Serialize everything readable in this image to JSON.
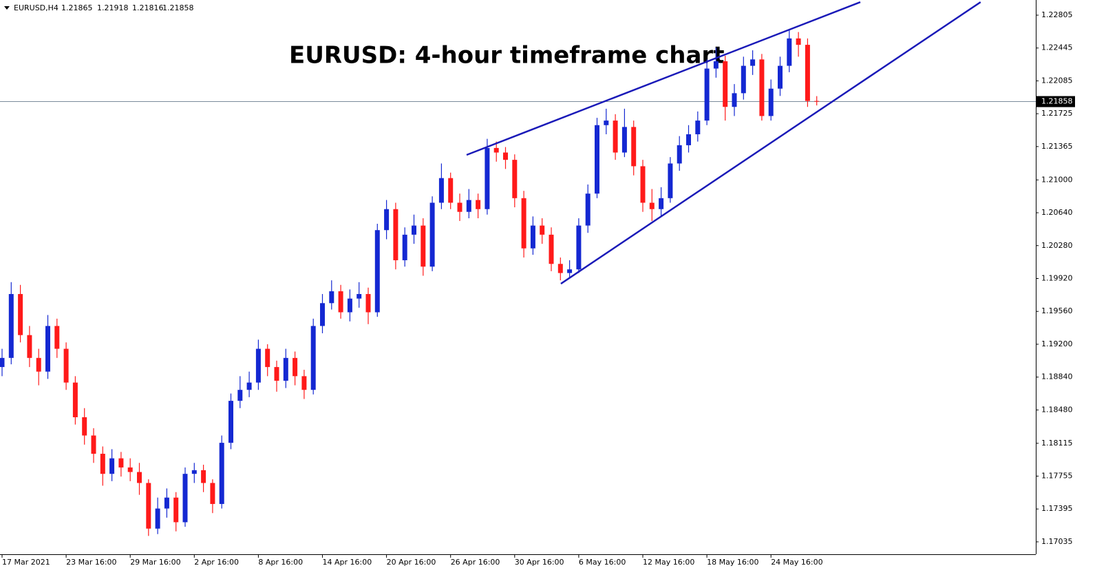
{
  "chart_data": {
    "type": "candlestick",
    "symbol": "EURUSD,H4",
    "title": "EURUSD: 4-hour timeframe chart",
    "categories": [
      "17 Mar 2021",
      null,
      null,
      null,
      null,
      null,
      null,
      "23 Mar 16:00",
      null,
      null,
      null,
      null,
      null,
      null,
      "29 Mar 16:00",
      null,
      null,
      null,
      null,
      null,
      null,
      "2 Apr 16:00",
      null,
      null,
      null,
      null,
      null,
      null,
      "8 Apr 16:00",
      null,
      null,
      null,
      null,
      null,
      null,
      "14 Apr 16:00",
      null,
      null,
      null,
      null,
      null,
      null,
      "20 Apr 16:00",
      null,
      null,
      null,
      null,
      null,
      null,
      "26 Apr 16:00",
      null,
      null,
      null,
      null,
      null,
      null,
      "30 Apr 16:00",
      null,
      null,
      null,
      null,
      null,
      null,
      "6 May 16:00",
      null,
      null,
      null,
      null,
      null,
      null,
      "12 May 16:00",
      null,
      null,
      null,
      null,
      null,
      null,
      "18 May 16:00",
      null,
      null,
      null,
      null,
      null,
      null,
      "24 May 16:00",
      null,
      null,
      null,
      null,
      null
    ],
    "open": [
      1.1895,
      1.1905,
      1.1975,
      1.193,
      1.1905,
      1.189,
      1.194,
      1.1915,
      1.1878,
      1.184,
      1.182,
      1.18,
      1.1778,
      1.1795,
      1.1785,
      1.178,
      1.1768,
      1.1718,
      1.174,
      1.1752,
      1.1725,
      1.1778,
      1.1782,
      1.1768,
      1.1745,
      1.1812,
      1.1858,
      1.187,
      1.1878,
      1.1915,
      1.1895,
      1.188,
      1.1905,
      1.1885,
      1.187,
      1.194,
      1.1965,
      1.1978,
      1.1955,
      1.197,
      1.1975,
      1.1955,
      1.2045,
      1.2068,
      1.2012,
      1.204,
      1.205,
      1.2005,
      1.2075,
      1.2102,
      1.2075,
      1.2065,
      1.2078,
      1.2068,
      1.2135,
      1.213,
      1.2122,
      1.208,
      1.2025,
      1.205,
      1.204,
      1.2008,
      1.1998,
      1.2002,
      1.205,
      1.2085,
      1.216,
      1.2165,
      1.213,
      1.2158,
      1.2115,
      1.2075,
      1.2068,
      1.208,
      1.2118,
      1.2138,
      1.215,
      1.2165,
      1.2222,
      1.223,
      1.218,
      1.2195,
      1.2225,
      1.2232,
      1.217,
      1.22,
      1.2225,
      1.2255,
      1.2248,
      1.21865
    ],
    "high": [
      1.1915,
      1.1988,
      1.1985,
      1.194,
      1.1915,
      1.1952,
      1.1948,
      1.1922,
      1.1885,
      1.185,
      1.1828,
      1.1808,
      1.1805,
      1.1802,
      1.1795,
      1.179,
      1.1772,
      1.1752,
      1.1762,
      1.1758,
      1.1785,
      1.179,
      1.1788,
      1.1772,
      1.182,
      1.1866,
      1.1885,
      1.189,
      1.1925,
      1.192,
      1.1902,
      1.1915,
      1.1912,
      1.1892,
      1.1948,
      1.1975,
      1.199,
      1.1985,
      1.198,
      1.1988,
      1.1982,
      1.2052,
      1.2078,
      1.2075,
      1.2048,
      1.2062,
      1.2058,
      1.2082,
      1.2118,
      1.2108,
      1.2085,
      1.209,
      1.2085,
      1.2145,
      1.2142,
      1.2136,
      1.2128,
      1.2088,
      1.206,
      1.2058,
      1.2048,
      1.2015,
      1.2012,
      1.2058,
      1.2095,
      1.2168,
      1.2178,
      1.2172,
      1.2178,
      1.2165,
      1.2122,
      1.209,
      1.2092,
      1.2125,
      1.2148,
      1.216,
      1.2175,
      1.2232,
      1.2245,
      1.2236,
      1.2205,
      1.2235,
      1.2242,
      1.2238,
      1.221,
      1.2235,
      1.2265,
      1.2262,
      1.2255,
      1.21918
    ],
    "low": [
      1.1885,
      1.1898,
      1.1922,
      1.1895,
      1.1875,
      1.1882,
      1.1905,
      1.187,
      1.1832,
      1.181,
      1.179,
      1.1765,
      1.177,
      1.1775,
      1.177,
      1.1755,
      1.171,
      1.1712,
      1.173,
      1.1715,
      1.172,
      1.1768,
      1.1758,
      1.1735,
      1.174,
      1.1805,
      1.185,
      1.1862,
      1.187,
      1.1885,
      1.1868,
      1.1872,
      1.1875,
      1.186,
      1.1865,
      1.1932,
      1.1958,
      1.1948,
      1.1945,
      1.196,
      1.1942,
      1.195,
      1.2035,
      1.2002,
      1.2005,
      1.203,
      1.1995,
      1.2,
      1.2068,
      1.2068,
      1.2055,
      1.2058,
      1.2058,
      1.2062,
      1.212,
      1.2112,
      1.207,
      1.2015,
      1.2018,
      1.203,
      1.2,
      1.199,
      1.1992,
      1.1998,
      1.2042,
      1.208,
      1.215,
      1.2122,
      1.2125,
      1.2105,
      1.2065,
      1.2055,
      1.206,
      1.2075,
      1.211,
      1.213,
      1.2142,
      1.216,
      1.2212,
      1.2165,
      1.217,
      1.2188,
      1.2215,
      1.2165,
      1.2165,
      1.2192,
      1.2218,
      1.2235,
      1.218,
      1.21816
    ],
    "close": [
      1.1905,
      1.1975,
      1.193,
      1.1905,
      1.189,
      1.194,
      1.1915,
      1.1878,
      1.184,
      1.182,
      1.18,
      1.1778,
      1.1795,
      1.1785,
      1.178,
      1.1768,
      1.1718,
      1.174,
      1.1752,
      1.1725,
      1.1778,
      1.1782,
      1.1768,
      1.1745,
      1.1812,
      1.1858,
      1.187,
      1.1878,
      1.1915,
      1.1895,
      1.188,
      1.1905,
      1.1885,
      1.187,
      1.194,
      1.1965,
      1.1978,
      1.1955,
      1.197,
      1.1975,
      1.1955,
      1.2045,
      1.2068,
      1.2012,
      1.204,
      1.205,
      1.2005,
      1.2075,
      1.2102,
      1.2075,
      1.2065,
      1.2078,
      1.2068,
      1.2135,
      1.213,
      1.2122,
      1.208,
      1.2025,
      1.205,
      1.204,
      1.2008,
      1.1998,
      1.2002,
      1.205,
      1.2085,
      1.216,
      1.2165,
      1.213,
      1.2158,
      1.2115,
      1.2075,
      1.2068,
      1.208,
      1.2118,
      1.2138,
      1.215,
      1.2165,
      1.2222,
      1.223,
      1.218,
      1.2195,
      1.2225,
      1.2232,
      1.217,
      1.22,
      1.2225,
      1.2255,
      1.2248,
      1.21865,
      1.21858
    ],
    "up_color": "#1428d2",
    "down_color": "#ff1a1a",
    "trendline_color": "#1a1ab8",
    "trendlines": [
      {
        "x": [
          50.75,
          93.76
        ],
        "y": [
          1.21274,
          1.22948
        ]
      },
      {
        "x": [
          61.05,
          106.9
        ],
        "y": [
          1.19863,
          1.22948
        ]
      }
    ],
    "ylim": [
      1.16899,
      1.22971
    ],
    "yticks": [
      1.22805,
      1.22445,
      1.22085,
      1.21725,
      1.21365,
      {
        "value": 1.21,
        "label": "1.21000"
      },
      {
        "value": 1.2064,
        "label": "1.20640"
      },
      {
        "value": 1.2028,
        "label": "1.20280"
      },
      {
        "value": 1.1992,
        "label": "1.19920"
      },
      {
        "value": 1.1956,
        "label": "1.19560"
      },
      {
        "value": 1.192,
        "label": "1.19200"
      },
      {
        "value": 1.1884,
        "label": "1.18840"
      },
      {
        "value": 1.1848,
        "label": "1.18480"
      },
      1.18115,
      1.17755,
      1.17395,
      1.17035
    ]
  }
}
